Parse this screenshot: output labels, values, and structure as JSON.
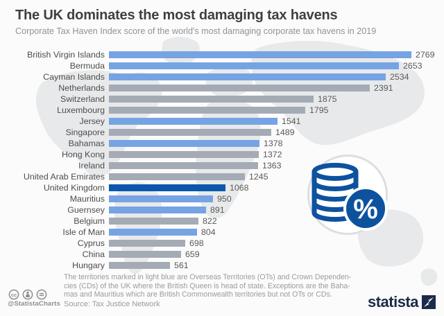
{
  "header": {
    "title": "The UK dominates the most damaging tax havens",
    "subtitle": "Corporate Tax Haven Index score of the world's most damaging corporate tax havens in 2019"
  },
  "chart_data": {
    "type": "bar",
    "orientation": "horizontal",
    "title": "The UK dominates the most damaging tax havens",
    "subtitle": "Corporate Tax Haven Index score of the world's most damaging corporate tax havens in 2019",
    "xlabel": "Corporate Tax Haven Index score",
    "ylabel": "",
    "xlim": [
      0,
      2769
    ],
    "grid": false,
    "value_labels": true,
    "categories": [
      "British Virgin Islands",
      "Bermuda",
      "Cayman Islands",
      "Netherlands",
      "Switzerland",
      "Luxembourg",
      "Jersey",
      "Singapore",
      "Bahamas",
      "Hong Kong",
      "Ireland",
      "United Arab Emirates",
      "United Kingdom",
      "Mauritius",
      "Guernsey",
      "Belgium",
      "Isle of Man",
      "Cyprus",
      "China",
      "Hungary"
    ],
    "values": [
      2769,
      2653,
      2534,
      2391,
      1875,
      1795,
      1541,
      1489,
      1378,
      1372,
      1363,
      1245,
      1068,
      950,
      891,
      822,
      804,
      698,
      659,
      561
    ],
    "bar_styles": [
      "ot_cd",
      "ot_cd",
      "ot_cd",
      "other",
      "other",
      "other",
      "ot_cd",
      "other",
      "ot_cd",
      "other",
      "other",
      "other",
      "uk",
      "ot_cd",
      "ot_cd",
      "other",
      "ot_cd",
      "other",
      "other",
      "other"
    ],
    "legend_note": "Light blue bars = UK Overseas Territories and Crown Dependencies; dark blue = United Kingdom; gray = other jurisdictions"
  },
  "colors": {
    "ot_cd_bar": "#76a3e3",
    "uk_bar": "#0b57ad",
    "other_bar": "#a4abb5",
    "emblem_blue": "#0d529f",
    "logo_navy": "#1b2b49",
    "title_text": "#3f3f3f",
    "muted_text": "#9b9b9b",
    "map_fill": "#e7e9ea"
  },
  "footnote": {
    "lines": [
      "The territories marked in light blue are Overseas Territories (OTs) and Crown Dependen-",
      "cies (CDs) of the UK where the British Queen is head of state. Exceptions are the Baha-",
      "mas and Mauritius which are British Commonwealth territories but not OTs or CDs."
    ]
  },
  "source": {
    "text": "Source: Tax Justice Network"
  },
  "footer": {
    "handle": "@StatistaCharts",
    "license_icons": [
      "cc-icon",
      "attribution-icon",
      "no-derivatives-icon"
    ],
    "brand": "statista"
  },
  "emblem": {
    "name": "coins-percent",
    "percent_glyph": "%"
  }
}
